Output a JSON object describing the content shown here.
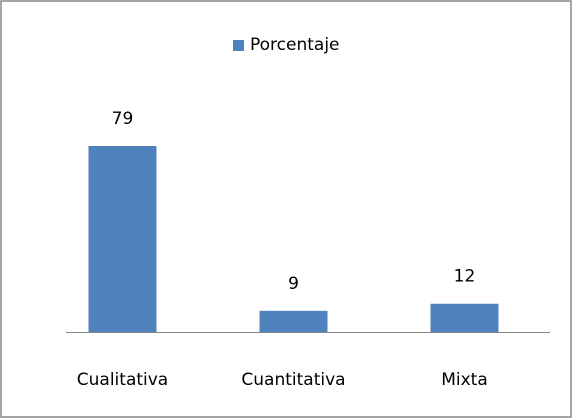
{
  "chart_data": {
    "type": "bar",
    "categories": [
      "Cualitativa",
      "Cuantitativa",
      "Mixta"
    ],
    "series": [
      {
        "name": "Porcentaje",
        "color": "#4f81bd",
        "values": [
          79,
          9,
          12
        ]
      }
    ],
    "legend": "top"
  }
}
